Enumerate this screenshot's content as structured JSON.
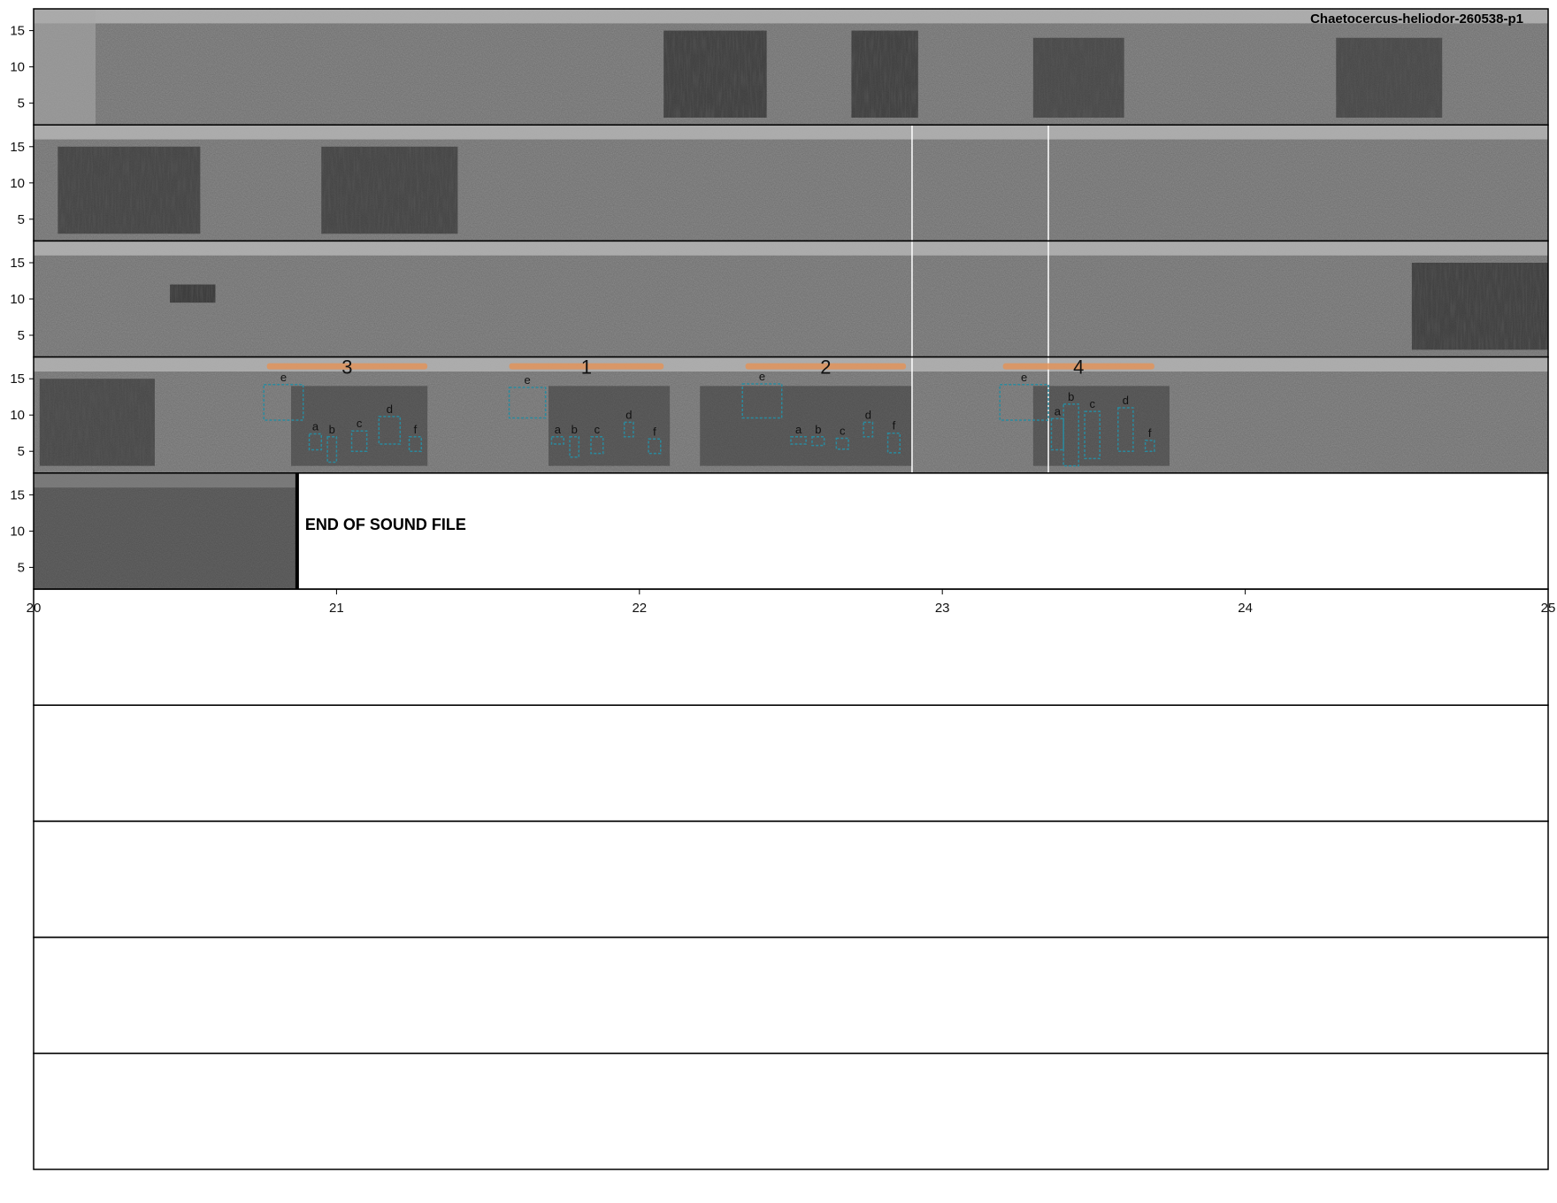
{
  "chart_data": {
    "type": "spectrogram",
    "title": "Chaetocercus-heliodor-260538-p1",
    "end_label": "END OF SOUND FILE",
    "y_ticks": [
      5,
      10,
      15
    ],
    "ylim": [
      2,
      18
    ],
    "x_ticks": [
      {
        "pos": 20,
        "label": "20"
      },
      {
        "pos": 21,
        "label": "21"
      },
      {
        "pos": 22,
        "label": "22"
      },
      {
        "pos": 23,
        "label": "23"
      },
      {
        "pos": 24,
        "label": "24"
      },
      {
        "pos": 25,
        "label": "25"
      }
    ],
    "xlim": [
      20,
      25
    ],
    "rows": [
      {
        "row": 0,
        "bursts": [
          {
            "t0": 22.08,
            "t1": 22.42,
            "f0": 3,
            "f1": 15,
            "dark": 0.55
          },
          {
            "t0": 22.7,
            "t1": 22.92,
            "f0": 3,
            "f1": 15,
            "dark": 0.55
          },
          {
            "t0": 23.3,
            "t1": 23.6,
            "f0": 3,
            "f1": 14,
            "dark": 0.45
          },
          {
            "t0": 24.3,
            "t1": 24.65,
            "f0": 3,
            "f1": 14,
            "dark": 0.45
          }
        ]
      },
      {
        "row": 1,
        "bursts": [
          {
            "t0": 20.08,
            "t1": 20.55,
            "f0": 3,
            "f1": 15,
            "dark": 0.5
          },
          {
            "t0": 20.95,
            "t1": 21.4,
            "f0": 3,
            "f1": 15,
            "dark": 0.5
          }
        ]
      },
      {
        "row": 2,
        "bursts": [
          {
            "t0": 20.45,
            "t1": 20.6,
            "f0": 9.5,
            "f1": 12,
            "dark": 0.6
          },
          {
            "t0": 24.55,
            "t1": 25.0,
            "f0": 3,
            "f1": 15,
            "dark": 0.55
          }
        ]
      },
      {
        "row": 3,
        "bursts": [
          {
            "t0": 20.02,
            "t1": 20.4,
            "f0": 3,
            "f1": 15,
            "dark": 0.45
          },
          {
            "t0": 20.85,
            "t1": 21.3,
            "f0": 3,
            "f1": 14,
            "dark": 0.35
          },
          {
            "t0": 21.7,
            "t1": 22.1,
            "f0": 3,
            "f1": 14,
            "dark": 0.35
          },
          {
            "t0": 22.2,
            "t1": 22.9,
            "f0": 3,
            "f1": 14,
            "dark": 0.35
          },
          {
            "t0": 23.3,
            "t1": 23.75,
            "f0": 3,
            "f1": 14,
            "dark": 0.35
          }
        ]
      },
      {
        "row": 4,
        "bursts": []
      }
    ],
    "white_lines": [
      {
        "rows": [
          1,
          2,
          3
        ],
        "t": 22.9
      },
      {
        "rows": [
          1,
          2,
          3
        ],
        "t": 23.35
      }
    ],
    "end_marker": {
      "row": 4,
      "t": 20.87
    },
    "phrases": [
      {
        "label": "3",
        "row": 3,
        "t0": 20.77,
        "t1": 21.3
      },
      {
        "label": "1",
        "row": 3,
        "t0": 21.57,
        "t1": 22.08
      },
      {
        "label": "2",
        "row": 3,
        "t0": 22.35,
        "t1": 22.88
      },
      {
        "label": "4",
        "row": 3,
        "t0": 23.2,
        "t1": 23.7
      }
    ],
    "segments": [
      {
        "label": "e",
        "t0": 20.76,
        "t1": 20.89,
        "f0": 9.3,
        "f1": 14.2
      },
      {
        "label": "a",
        "t0": 20.91,
        "t1": 20.95,
        "f0": 5.2,
        "f1": 7.4
      },
      {
        "label": "b",
        "t0": 20.97,
        "t1": 21.0,
        "f0": 3.5,
        "f1": 7.0
      },
      {
        "label": "c",
        "t0": 21.05,
        "t1": 21.1,
        "f0": 5.0,
        "f1": 7.8
      },
      {
        "label": "d",
        "t0": 21.14,
        "t1": 21.21,
        "f0": 6.0,
        "f1": 9.8
      },
      {
        "label": "f",
        "t0": 21.24,
        "t1": 21.28,
        "f0": 5.0,
        "f1": 7.0
      },
      {
        "label": "e",
        "t0": 21.57,
        "t1": 21.69,
        "f0": 9.6,
        "f1": 13.8
      },
      {
        "label": "a",
        "t0": 21.71,
        "t1": 21.75,
        "f0": 6.0,
        "f1": 7.0
      },
      {
        "label": "b",
        "t0": 21.77,
        "t1": 21.8,
        "f0": 4.2,
        "f1": 7.0
      },
      {
        "label": "c",
        "t0": 21.84,
        "t1": 21.88,
        "f0": 4.7,
        "f1": 7.0
      },
      {
        "label": "d",
        "t0": 21.95,
        "t1": 21.98,
        "f0": 7.0,
        "f1": 9.0
      },
      {
        "label": "f",
        "t0": 22.03,
        "t1": 22.07,
        "f0": 4.7,
        "f1": 6.7
      },
      {
        "label": "e",
        "t0": 22.34,
        "t1": 22.47,
        "f0": 9.6,
        "f1": 14.3
      },
      {
        "label": "a",
        "t0": 22.5,
        "t1": 22.55,
        "f0": 6.0,
        "f1": 7.0
      },
      {
        "label": "b",
        "t0": 22.57,
        "t1": 22.61,
        "f0": 5.8,
        "f1": 7.0
      },
      {
        "label": "c",
        "t0": 22.65,
        "t1": 22.69,
        "f0": 5.3,
        "f1": 6.8
      },
      {
        "label": "d",
        "t0": 22.74,
        "t1": 22.77,
        "f0": 7.0,
        "f1": 9.0
      },
      {
        "label": "f",
        "t0": 22.82,
        "t1": 22.86,
        "f0": 4.8,
        "f1": 7.5
      },
      {
        "label": "e",
        "t0": 23.19,
        "t1": 23.35,
        "f0": 9.3,
        "f1": 14.2
      },
      {
        "label": "a",
        "t0": 23.36,
        "t1": 23.4,
        "f0": 5.2,
        "f1": 9.5
      },
      {
        "label": "b",
        "t0": 23.4,
        "t1": 23.45,
        "f0": 3.0,
        "f1": 11.5
      },
      {
        "label": "c",
        "t0": 23.47,
        "t1": 23.52,
        "f0": 4.0,
        "f1": 10.5
      },
      {
        "label": "d",
        "t0": 23.58,
        "t1": 23.63,
        "f0": 5.0,
        "f1": 11.0
      },
      {
        "label": "f",
        "t0": 23.67,
        "t1": 23.7,
        "f0": 5.0,
        "f1": 6.5
      }
    ],
    "colors": {
      "segment_box": "#2a8a9e",
      "phrase_bar": "#e0935a",
      "frame": "#000000",
      "band": "#b4b4b4",
      "background_noise": "#6e6e6e"
    }
  }
}
